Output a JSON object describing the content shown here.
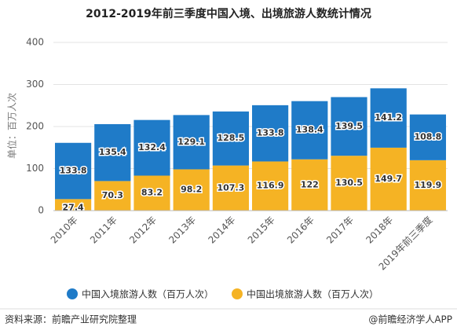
{
  "chart_data": {
    "type": "stacked-bar",
    "title": "2012-2019年前三季度中国入境、出境旅游人数统计情况",
    "y_label": "单位：百万人次",
    "categories": [
      "2010年",
      "2011年",
      "2012年",
      "2013年",
      "2014年",
      "2015年",
      "2016年",
      "2017年",
      "2018年",
      "2019年前三季度"
    ],
    "series": [
      {
        "name": "中国入境旅游人数（百万人次）",
        "color": "#1f7bc8",
        "values": [
          133.8,
          135.4,
          132.4,
          129.1,
          128.5,
          133.8,
          138.4,
          139.5,
          141.2,
          108.8
        ]
      },
      {
        "name": "中国出境旅游人数（百万人次）",
        "color": "#f5b324",
        "values": [
          27.4,
          70.3,
          83.2,
          98.2,
          107.3,
          116.9,
          122,
          130.5,
          149.7,
          119.9
        ]
      }
    ],
    "stack_order": [
      1,
      0
    ],
    "ylim": [
      0,
      400
    ],
    "yticks": [
      0,
      100,
      200,
      300,
      400
    ],
    "grid": true,
    "legend": "bottom",
    "source": "资料来源：前瞻产业研究院整理",
    "credit": "@前瞻经济学人APP"
  }
}
